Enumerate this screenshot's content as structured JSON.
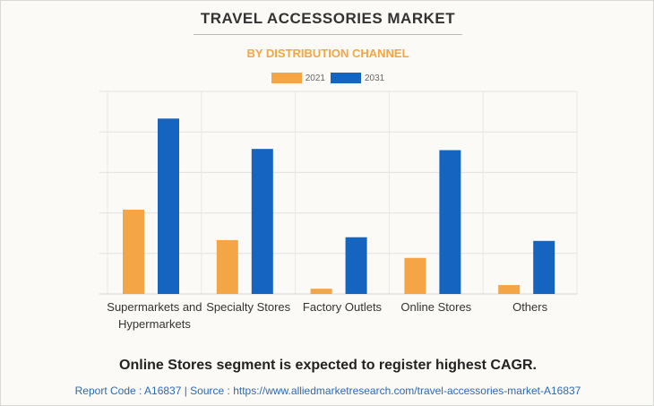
{
  "header": {
    "title": "TRAVEL ACCESSORIES MARKET",
    "subtitle": "BY DISTRIBUTION CHANNEL"
  },
  "footer": {
    "note": "Online Stores segment is expected to register highest CAGR.",
    "source": "Report Code : A16837  |  Source : https://www.alliedmarketresearch.com/travel-accessories-market-A16837"
  },
  "chart_data": {
    "type": "bar",
    "title": "TRAVEL ACCESSORIES MARKET",
    "subtitle": "BY DISTRIBUTION CHANNEL",
    "categories": [
      "Supermarkets and Hypermarkets",
      "Specialty Stores",
      "Factory Outlets",
      "Online Stores",
      "Others"
    ],
    "category_lines": [
      [
        "Supermarkets and",
        "Hypermarkets"
      ],
      [
        "Specialty Stores"
      ],
      [
        "Factory Outlets"
      ],
      [
        "Online Stores"
      ],
      [
        "Others"
      ]
    ],
    "series": [
      {
        "name": "2021",
        "color": "#f4a546",
        "values": [
          2.08,
          1.33,
          0.13,
          0.89,
          0.22
        ]
      },
      {
        "name": "2031",
        "color": "#1565c0",
        "values": [
          4.33,
          3.58,
          1.4,
          3.55,
          1.31
        ]
      }
    ],
    "ylim": [
      0,
      5
    ],
    "y_tick_labels_shown": false,
    "grid": true,
    "legend": "top-center",
    "xlabel": "",
    "ylabel": ""
  }
}
